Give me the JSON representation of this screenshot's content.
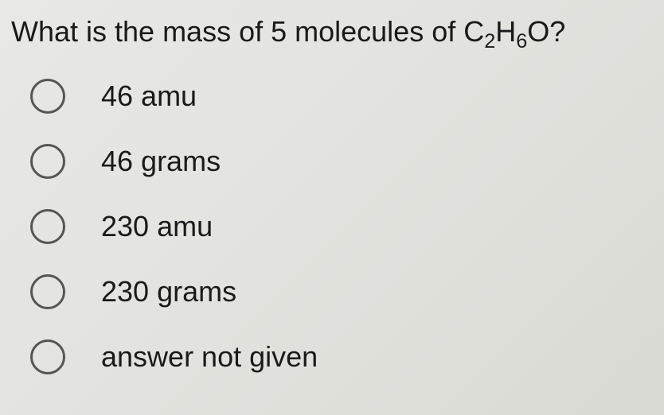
{
  "question": {
    "prefix": "What is the mass of 5 molecules of C",
    "sub1": "2",
    "mid": "H",
    "sub2": "6",
    "suffix": "O?"
  },
  "options": [
    {
      "label": "46 amu"
    },
    {
      "label": "46 grams"
    },
    {
      "label": "230 amu"
    },
    {
      "label": "230 grams"
    },
    {
      "label": "answer not given"
    }
  ],
  "colors": {
    "text": "#1a1a1a",
    "radio_border": "#555555",
    "background": "#e4e4e0"
  },
  "fonts": {
    "question_size": 36,
    "option_size": 36
  }
}
